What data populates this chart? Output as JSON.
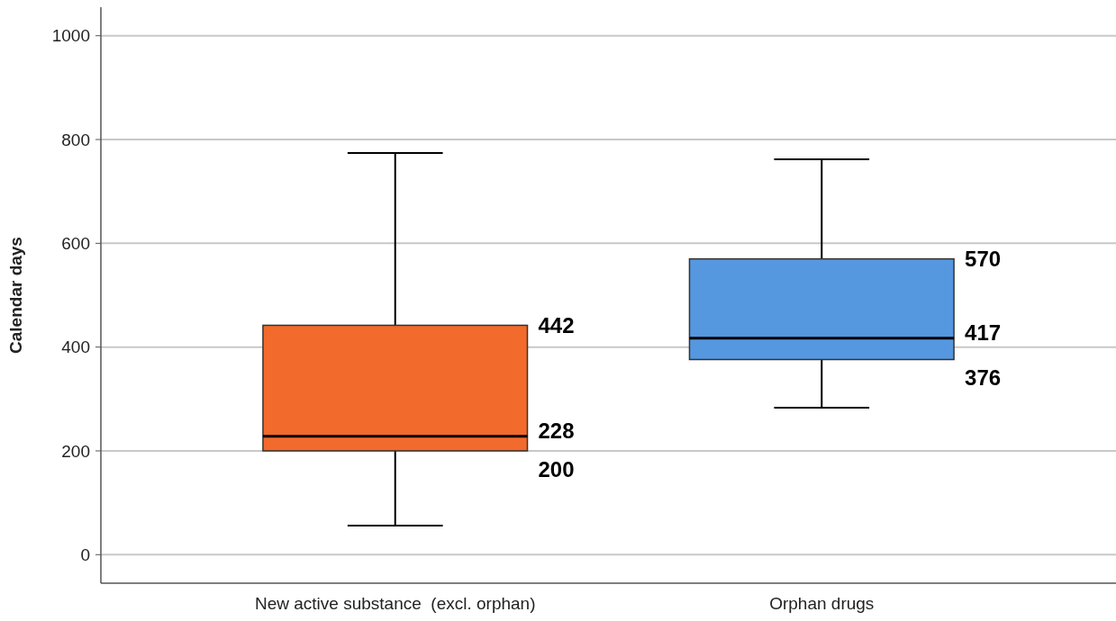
{
  "chart_data": {
    "type": "box",
    "ylabel": "Calendar days",
    "categories": [
      "New active substance  (excl. orphan)",
      "Orphan drugs"
    ],
    "boxes": [
      {
        "low": 56,
        "q1": 200,
        "median": 228,
        "q3": 442,
        "high": 774
      },
      {
        "low": 283,
        "q1": 376,
        "median": 417,
        "q3": 570,
        "high": 762
      }
    ],
    "colors": [
      "#f26a2c",
      "#5598e0"
    ],
    "ylim": [
      -55,
      1055
    ],
    "yticks": [
      0,
      200,
      400,
      600,
      800,
      1000
    ],
    "grid": "y",
    "annotations": [
      "442",
      "228",
      "200",
      "570",
      "417",
      "376"
    ]
  }
}
